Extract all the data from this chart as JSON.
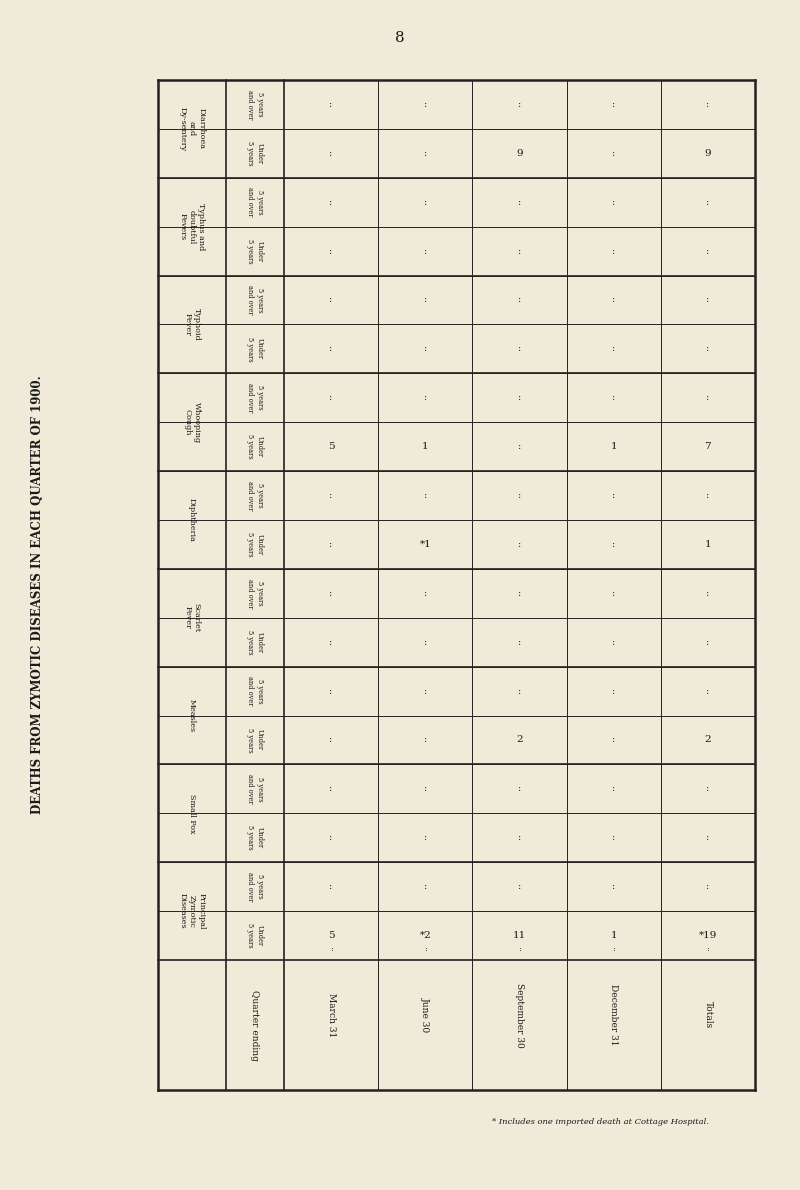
{
  "title": "DEATHS FROM ZYMOTIC DISEASES IN EACH QUARTER OF 1900.",
  "page_number": "8",
  "background_color": "#f0ead8",
  "footnote": "* Includes one imported death at Cottage Hospital.",
  "row_groups": [
    "Diarrhoea\nand\nDy-sentery",
    "Typhus and\ndoubtful\nFevers",
    "Typhoid\nFever",
    "Whooping\nCough",
    "Diphtheria",
    "Scarlet\nFever",
    "Measles",
    "Small Pox",
    "Principal\nZymotic\nDiseases"
  ],
  "subrow_labels": [
    "5 years\nand over",
    "Under\n5 years"
  ],
  "quarters": [
    "March 31",
    "June 30",
    "September 30",
    "December 31",
    "Totals"
  ],
  "data": {
    "Diarrhoea and Dy-sentery - 5 years and over": [
      ":",
      ":",
      ":",
      ":",
      ":"
    ],
    "Diarrhoea and Dy-sentery - Under 5 years": [
      ":",
      ":",
      "9",
      ":",
      "9"
    ],
    "Typhus and doubtful Fevers - 5 years and over": [
      ":",
      ":",
      ":",
      ":",
      ":"
    ],
    "Typhus and doubtful Fevers - Under 5 years": [
      ":",
      ":",
      ":",
      ":",
      ":"
    ],
    "Typhoid Fever - 5 years and over": [
      ":",
      ":",
      ":",
      ":",
      ":"
    ],
    "Typhoid Fever - Under 5 years": [
      ":",
      ":",
      ":",
      ":",
      ":"
    ],
    "Whooping Cough - 5 years and over": [
      ":",
      ":",
      ":",
      ":",
      ":"
    ],
    "Whooping Cough - Under 5 years": [
      "5",
      "1",
      ":",
      "1",
      "7"
    ],
    "Diphtheria - 5 years and over": [
      ":",
      ":",
      ":",
      ":",
      ":"
    ],
    "Diphtheria - Under 5 years": [
      ":",
      "*1",
      ":",
      ":",
      "1"
    ],
    "Scarlet Fever - 5 years and over": [
      ":",
      ":",
      ":",
      ":",
      ":"
    ],
    "Scarlet Fever - Under 5 years": [
      ":",
      ":",
      ":",
      ":",
      ":"
    ],
    "Measles - 5 years and over": [
      ":",
      ":",
      ":",
      ":",
      ":"
    ],
    "Measles - Under 5 years": [
      ":",
      ":",
      "2",
      ":",
      "2"
    ],
    "Small Pox - 5 years and over": [
      ":",
      ":",
      ":",
      ":",
      ":"
    ],
    "Small Pox - Under 5 years": [
      ":",
      ":",
      ":",
      ":",
      ":"
    ],
    "Principal Zymotic Diseases - 5 years and over": [
      ":",
      ":",
      ":",
      ":",
      ":"
    ],
    "Principal Zymotic Diseases - Under 5 years": [
      "5",
      "*2",
      "11",
      "1",
      "*19"
    ]
  },
  "data_key_order": [
    [
      "Diarrhoea and Dy-sentery - 5 years and over",
      "Diarrhoea and Dy-sentery - Under 5 years"
    ],
    [
      "Typhus and doubtful Fevers - 5 years and over",
      "Typhus and doubtful Fevers - Under 5 years"
    ],
    [
      "Typhoid Fever - 5 years and over",
      "Typhoid Fever - Under 5 years"
    ],
    [
      "Whooping Cough - 5 years and over",
      "Whooping Cough - Under 5 years"
    ],
    [
      "Diphtheria - 5 years and over",
      "Diphtheria - Under 5 years"
    ],
    [
      "Scarlet Fever - 5 years and over",
      "Scarlet Fever - Under 5 years"
    ],
    [
      "Measles - 5 years and over",
      "Measles - Under 5 years"
    ],
    [
      "Small Pox - 5 years and over",
      "Small Pox - Under 5 years"
    ],
    [
      "Principal Zymotic Diseases - 5 years and over",
      "Principal Zymotic Diseases - Under 5 years"
    ]
  ]
}
